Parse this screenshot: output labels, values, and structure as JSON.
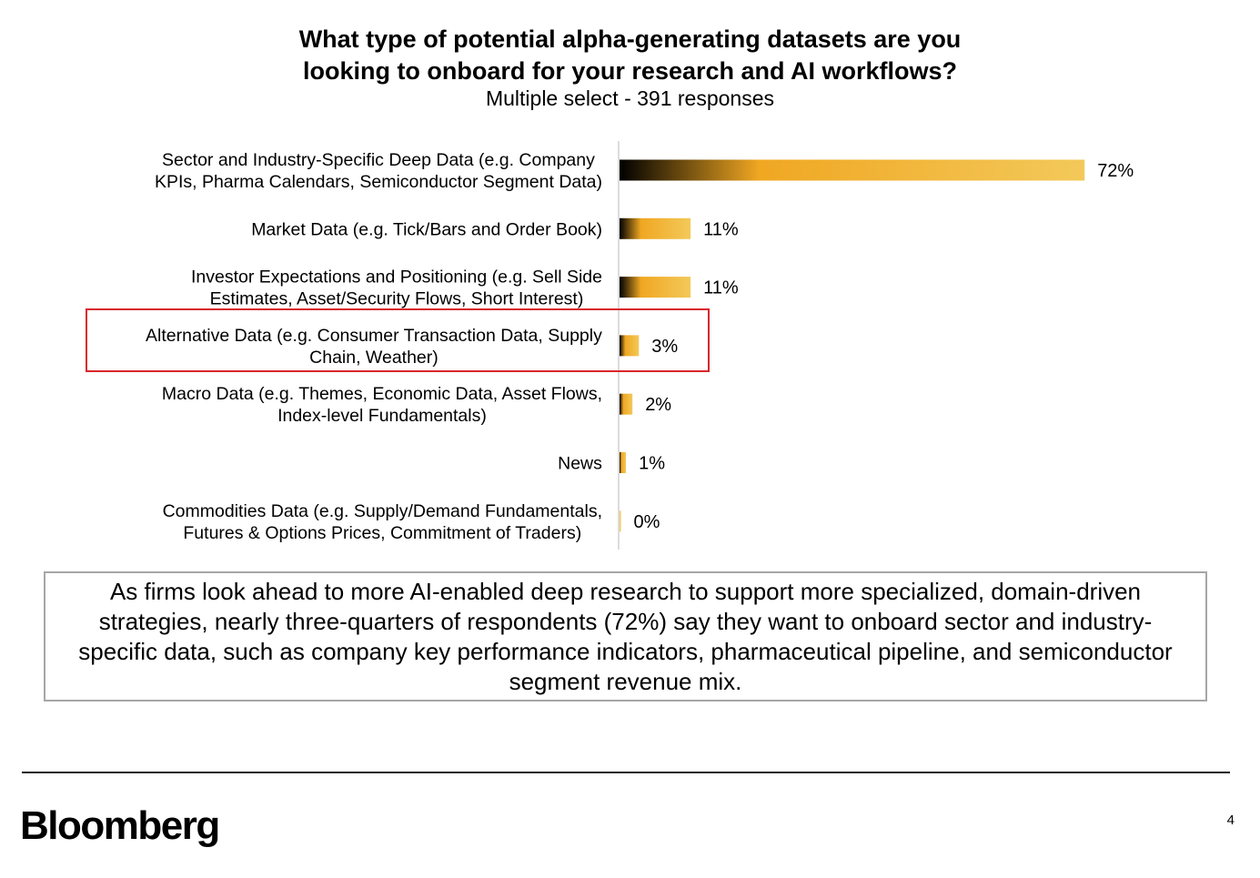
{
  "chart_data": {
    "type": "bar",
    "orientation": "horizontal",
    "title": "What type of potential alpha-generating datasets are you looking to onboard for your research and AI workflows?",
    "title_lines": [
      "What type of potential alpha-generating datasets are you",
      "looking to onboard for your research and AI workflows?"
    ],
    "subtitle": "Multiple select - 391 responses",
    "categories": [
      [
        "Sector and Industry-Specific Deep Data (e.g. Company",
        "KPIs, Pharma Calendars, Semiconductor Segment Data)"
      ],
      [
        "Market Data (e.g. Tick/Bars and Order Book)"
      ],
      [
        "Investor Expectations and Positioning (e.g. Sell Side",
        "Estimates, Asset/Security Flows, Short Interest)"
      ],
      [
        "Alternative Data (e.g. Consumer Transaction Data, Supply",
        "Chain, Weather)"
      ],
      [
        "Macro Data (e.g. Themes, Economic Data, Asset Flows,",
        "Index-level Fundamentals)"
      ],
      [
        "News"
      ],
      [
        "Commodities Data (e.g. Supply/Demand Fundamentals,",
        "Futures & Options Prices, Commitment of Traders)"
      ]
    ],
    "values": [
      72,
      11,
      11,
      3,
      2,
      1,
      0
    ],
    "value_labels": [
      "72%",
      "11%",
      "11%",
      "3%",
      "2%",
      "1%",
      "0%"
    ],
    "xlim": [
      0,
      100
    ],
    "grid": false,
    "highlighted_category_index": 3,
    "colors": {
      "gradient_start": "#000000",
      "gradient_mid": "#f0a722",
      "gradient_end": "#f3c95a",
      "highlight_border": "#d9262c",
      "axis": "#d0d0d0"
    }
  },
  "callout": {
    "text": "As firms look ahead to more AI-enabled deep research to support more specialized, domain-driven strategies, nearly three-quarters of respondents (72%) say they want to onboard sector and industry-specific data, such as company key performance indicators, pharmaceutical pipeline, and semiconductor segment revenue mix."
  },
  "footer": {
    "brand": "Bloomberg",
    "page_number": "4"
  }
}
